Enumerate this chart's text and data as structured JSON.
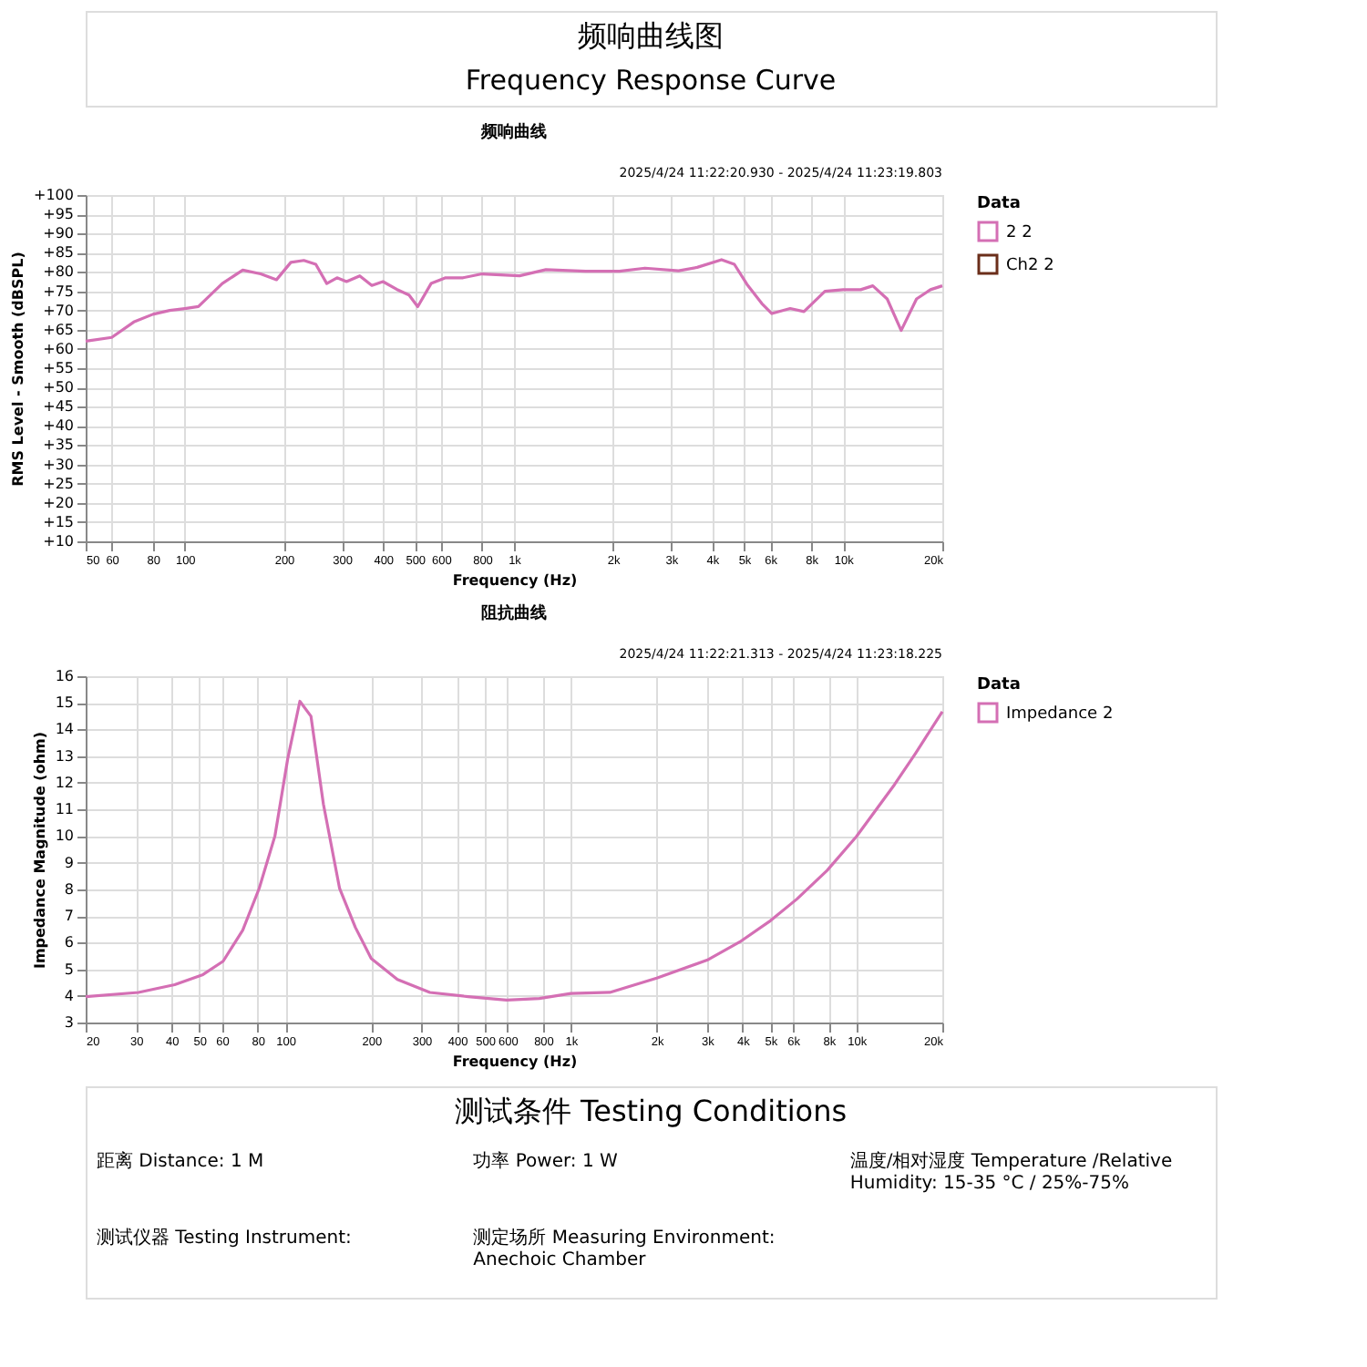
{
  "chart_data": [
    {
      "type": "other",
      "title": "频响曲线图",
      "subtitle": "Frequency Response Curve"
    },
    {
      "type": "line",
      "title": "频响曲线",
      "annotations": [
        "2025/4/24 11:22:20.930 - 2025/4/24 11:23:19.803"
      ],
      "xlabel": "Frequency (Hz)",
      "ylabel": "RMS Level - Smooth (dBSPL)",
      "legend_title": "Data",
      "legend": "right",
      "log": "x",
      "grid": true,
      "xlim": [
        50,
        20000
      ],
      "xticks": [
        50,
        60,
        80,
        100,
        200,
        300,
        400,
        500,
        600,
        800,
        {
          "value": 1000,
          "label": "1k"
        },
        {
          "value": 2000,
          "label": "2k"
        },
        {
          "value": 3000,
          "label": "3k"
        },
        {
          "value": 4000,
          "label": "4k"
        },
        {
          "value": 5000,
          "label": "5k"
        },
        {
          "value": 6000,
          "label": "6k"
        },
        {
          "value": 8000,
          "label": "8k"
        },
        {
          "value": 10000,
          "label": "10k"
        },
        {
          "value": 20000,
          "label": "20k"
        }
      ],
      "ylim": [
        10,
        100
      ],
      "yticks": [
        {
          "value": 10,
          "label": "+10"
        },
        {
          "value": 15,
          "label": "+15"
        },
        {
          "value": 20,
          "label": "+20"
        },
        {
          "value": 25,
          "label": "+25"
        },
        {
          "value": 30,
          "label": "+30"
        },
        {
          "value": 35,
          "label": "+35"
        },
        {
          "value": 40,
          "label": "+40"
        },
        {
          "value": 45,
          "label": "+45"
        },
        {
          "value": 50,
          "label": "+50"
        },
        {
          "value": 55,
          "label": "+55"
        },
        {
          "value": 60,
          "label": "+60"
        },
        {
          "value": 65,
          "label": "+65"
        },
        {
          "value": 70,
          "label": "+70"
        },
        {
          "value": 75,
          "label": "+75"
        },
        {
          "value": 80,
          "label": "+80"
        },
        {
          "value": 85,
          "label": "+85"
        },
        {
          "value": 90,
          "label": "+90"
        },
        {
          "value": 95,
          "label": "+95"
        },
        {
          "value": 100,
          "label": "+100"
        }
      ],
      "x": [
        50,
        60,
        70,
        80,
        90,
        100,
        110,
        130,
        150,
        170,
        190,
        210,
        230,
        250,
        270,
        290,
        310,
        340,
        370,
        400,
        440,
        480,
        510,
        560,
        620,
        700,
        800,
        1040,
        1250,
        1650,
        2090,
        2500,
        3160,
        3600,
        4270,
        4670,
        5100,
        5660,
        6070,
        6900,
        7600,
        8800,
        10000,
        11300,
        12300,
        13600,
        15000,
        16700,
        18400,
        20000
      ],
      "series": [
        {
          "name": "2 2",
          "color": "#d46fb4",
          "values": [
            62,
            63,
            67,
            69,
            70,
            70.5,
            71,
            77,
            80.5,
            79.5,
            78,
            82.5,
            83,
            82,
            77,
            78.5,
            77.5,
            79,
            76.5,
            77.5,
            75.5,
            74,
            71,
            77,
            78.5,
            78.5,
            79.5,
            79,
            80.6,
            80.2,
            80.2,
            81,
            80.3,
            81.2,
            83.2,
            82,
            76.8,
            71.8,
            69.2,
            70.5,
            69.7,
            75,
            75.4,
            75.4,
            76.4,
            73,
            64.8,
            73,
            75.4,
            76.4
          ]
        },
        {
          "name": "Ch2 2",
          "color": "#6b2e1a",
          "values": [
            null,
            null,
            null,
            null,
            null,
            null,
            null,
            null,
            null,
            null,
            null,
            null,
            null,
            null,
            null,
            null,
            null,
            null,
            null,
            null,
            null,
            null,
            null,
            null,
            null,
            null,
            null,
            null,
            null,
            null,
            null,
            null,
            null,
            null,
            null,
            null,
            null,
            null,
            null,
            null,
            null,
            null,
            null,
            null,
            null,
            null,
            null,
            null,
            null,
            null
          ]
        }
      ]
    },
    {
      "type": "line",
      "title": "阻抗曲线",
      "annotations": [
        "2025/4/24 11:22:21.313 - 2025/4/24 11:23:18.225"
      ],
      "xlabel": "Frequency (Hz)",
      "ylabel": "Impedance Magnitude (ohm)",
      "legend_title": "Data",
      "legend": "right",
      "log": "x",
      "grid": true,
      "xlim": [
        20,
        20000
      ],
      "xticks": [
        20,
        30,
        40,
        50,
        60,
        80,
        100,
        200,
        300,
        400,
        500,
        600,
        800,
        {
          "value": 1000,
          "label": "1k"
        },
        {
          "value": 2000,
          "label": "2k"
        },
        {
          "value": 3000,
          "label": "3k"
        },
        {
          "value": 4000,
          "label": "4k"
        },
        {
          "value": 5000,
          "label": "5k"
        },
        {
          "value": 6000,
          "label": "6k"
        },
        {
          "value": 8000,
          "label": "8k"
        },
        {
          "value": 10000,
          "label": "10k"
        },
        {
          "value": 20000,
          "label": "20k"
        }
      ],
      "ylim": [
        3,
        16
      ],
      "yticks": [
        3,
        4,
        5,
        6,
        7,
        8,
        9,
        10,
        11,
        12,
        13,
        14,
        15,
        16
      ],
      "x": [
        20,
        30.6,
        41,
        51.5,
        60.6,
        71,
        81,
        92,
        102,
        112.5,
        123,
        136,
        155,
        176,
        200,
        247,
        321,
        437,
        596,
        776,
        1000,
        1370,
        2000,
        3000,
        3900,
        5000,
        6200,
        7900,
        10000,
        13600,
        16100,
        20000
      ],
      "series": [
        {
          "name": "Impedance 2",
          "color": "#d46fb4",
          "values": [
            3.97,
            4.13,
            4.42,
            4.8,
            5.3,
            6.47,
            8.03,
            10,
            12.9,
            15.06,
            14.5,
            11.2,
            8.03,
            6.57,
            5.4,
            4.62,
            4.13,
            3.97,
            3.84,
            3.9,
            4.09,
            4.13,
            4.67,
            5.34,
            6.02,
            6.82,
            7.64,
            8.71,
            9.98,
            11.93,
            13.1,
            14.67
          ]
        }
      ]
    },
    {
      "type": "other",
      "title": "测试条件 Testing Conditions",
      "annotations": [
        "距离 Distance: 1 M",
        "功率 Power: 1 W",
        "温度/相对湿度 Temperature /Relative Humidity: 15-35 °C / 25%-75%",
        "测试仪器 Testing Instrument:",
        "测定场所 Measuring Environment: Anechoic Chamber"
      ]
    }
  ]
}
